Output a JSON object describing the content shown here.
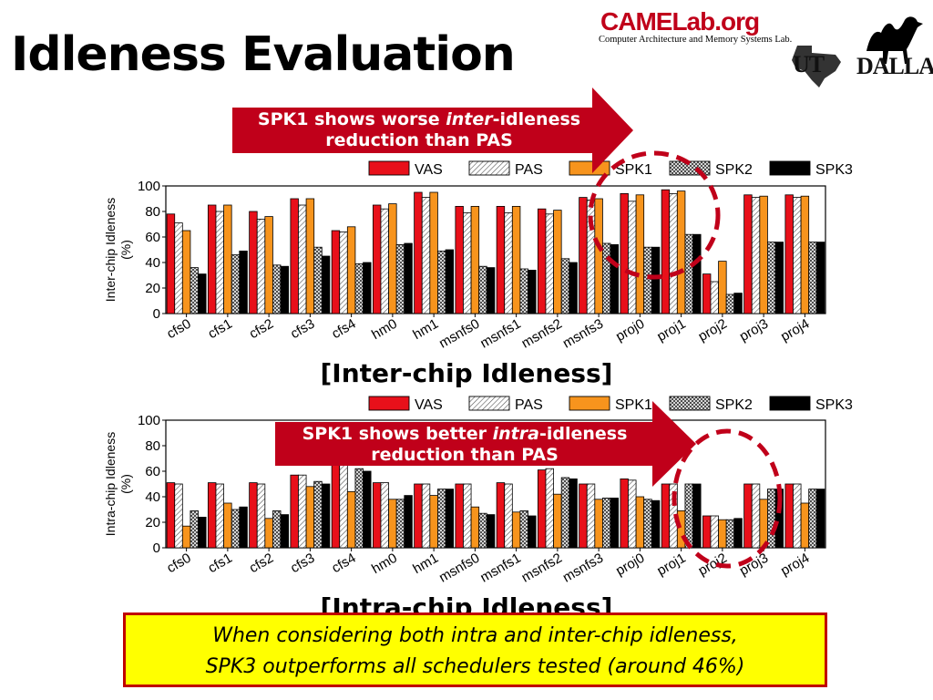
{
  "slide": {
    "title": "Idleness Evaluation"
  },
  "logo": {
    "camel": "CAMELab.org",
    "sub": "Computer Architecture and Memory Systems Lab.",
    "ut": "UT",
    "dallas": "DALLAS"
  },
  "colors": {
    "VAS": "#e8101a",
    "PAS": "#ffffff",
    "SPK1": "#f7941d",
    "SPK2": "#cccccc",
    "SPK3": "#000000",
    "arrow": "#c0001a",
    "circle": "#c0001a",
    "highlight": "#ffff00"
  },
  "callouts": {
    "top_a": "SPK1 shows worse ",
    "top_em": "inter",
    "top_b": "-idleness",
    "top_c": "reduction than PAS",
    "bottom_a": "SPK1 shows better ",
    "bottom_em": "intra",
    "bottom_b": "-idleness",
    "bottom_c": "reduction than PAS"
  },
  "captions": {
    "inter": "[Inter-chip Idleness]",
    "intra": "[Intra-chip Idleness]"
  },
  "conclusion": {
    "line1": "When considering both intra and inter-chip idleness,",
    "line2": "SPK3 outperforms all schedulers tested  (around 46%)"
  },
  "chart_data": [
    {
      "type": "bar",
      "ylabel": "Inter-chip Idleness (%)",
      "ylim": [
        0,
        100
      ],
      "yticks": [
        0,
        20,
        40,
        60,
        80,
        100
      ],
      "legend": "top",
      "categories": [
        "cfs0",
        "cfs1",
        "cfs2",
        "cfs3",
        "cfs4",
        "hm0",
        "hm1",
        "msnfs0",
        "msnfs1",
        "msnfs2",
        "msnfs3",
        "proj0",
        "proj1",
        "proj2",
        "proj3",
        "proj4"
      ],
      "series": [
        {
          "name": "VAS",
          "values": [
            78,
            85,
            80,
            90,
            65,
            85,
            95,
            84,
            84,
            82,
            91,
            94,
            97,
            31,
            93,
            93
          ]
        },
        {
          "name": "PAS",
          "values": [
            71,
            80,
            74,
            85,
            64,
            82,
            91,
            79,
            79,
            78,
            89,
            88,
            94,
            25,
            91,
            91
          ]
        },
        {
          "name": "SPK1",
          "values": [
            65,
            85,
            76,
            90,
            68,
            86,
            95,
            84,
            84,
            81,
            90,
            93,
            96,
            41,
            92,
            92
          ]
        },
        {
          "name": "SPK2",
          "values": [
            36,
            46,
            38,
            52,
            39,
            54,
            49,
            37,
            35,
            43,
            55,
            52,
            62,
            15,
            56,
            56
          ]
        },
        {
          "name": "SPK3",
          "values": [
            31,
            49,
            37,
            45,
            40,
            55,
            50,
            36,
            34,
            40,
            54,
            52,
            62,
            16,
            56,
            56
          ]
        }
      ]
    },
    {
      "type": "bar",
      "ylabel": "Intra-chip Idleness (%)",
      "ylim": [
        0,
        100
      ],
      "yticks": [
        0,
        20,
        40,
        60,
        80,
        100
      ],
      "legend": "top",
      "categories": [
        "cfs0",
        "cfs1",
        "cfs2",
        "cfs3",
        "cfs4",
        "hm0",
        "hm1",
        "msnfs0",
        "msnfs1",
        "msnfs2",
        "msnfs3",
        "proj0",
        "proj1",
        "proj2",
        "proj3",
        "proj4"
      ],
      "series": [
        {
          "name": "VAS",
          "values": [
            51,
            51,
            51,
            57,
            68,
            51,
            50,
            50,
            51,
            61,
            50,
            54,
            50,
            25,
            50,
            50
          ]
        },
        {
          "name": "PAS",
          "values": [
            50,
            50,
            50,
            57,
            66,
            51,
            50,
            50,
            50,
            62,
            50,
            53,
            50,
            25,
            50,
            50
          ]
        },
        {
          "name": "SPK1",
          "values": [
            17,
            35,
            23,
            48,
            44,
            38,
            41,
            32,
            28,
            42,
            38,
            40,
            29,
            22,
            38,
            35
          ]
        },
        {
          "name": "SPK2",
          "values": [
            29,
            30,
            29,
            52,
            62,
            38,
            46,
            27,
            29,
            55,
            39,
            38,
            50,
            22,
            46,
            46
          ]
        },
        {
          "name": "SPK3",
          "values": [
            24,
            32,
            26,
            50,
            60,
            41,
            46,
            26,
            25,
            54,
            39,
            37,
            50,
            23,
            46,
            46
          ]
        }
      ]
    }
  ]
}
